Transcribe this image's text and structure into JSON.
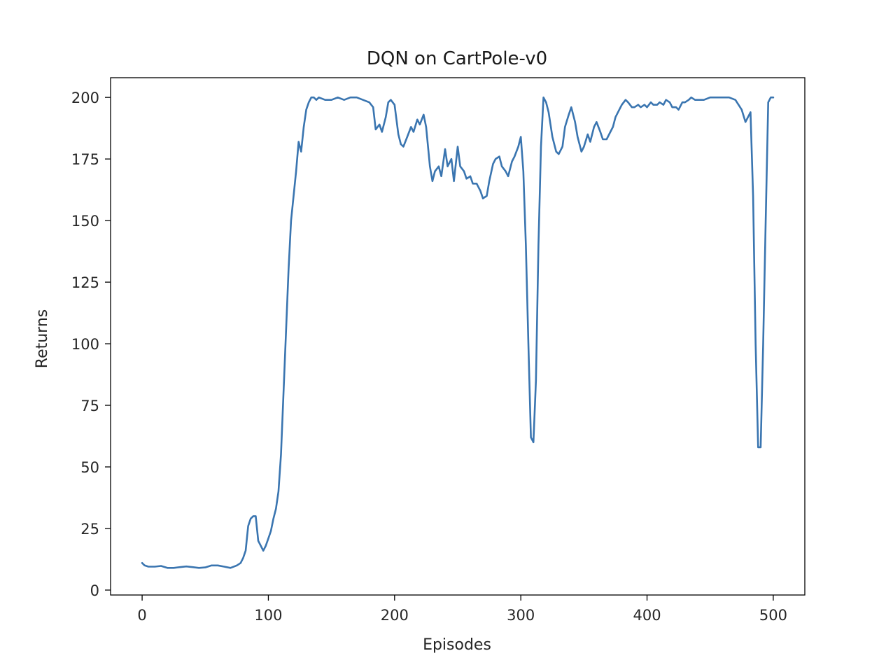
{
  "chart_data": {
    "type": "line",
    "title": "DQN on CartPole-v0",
    "xlabel": "Episodes",
    "ylabel": "Returns",
    "xlim": [
      -25,
      525
    ],
    "ylim": [
      -2,
      208
    ],
    "x_ticks": [
      0,
      100,
      200,
      300,
      400,
      500
    ],
    "y_ticks": [
      0,
      25,
      50,
      75,
      100,
      125,
      150,
      175,
      200
    ],
    "grid": false,
    "line_color": "#3a75b0",
    "series": [
      {
        "x": [
          0,
          2,
          5,
          10,
          15,
          20,
          25,
          30,
          35,
          40,
          45,
          50,
          55,
          60,
          65,
          70,
          75,
          78,
          80,
          82,
          84,
          86,
          88,
          90,
          92,
          94,
          96,
          98,
          100,
          102,
          104,
          106,
          108,
          110,
          112,
          114,
          116,
          118,
          120,
          122,
          124,
          126,
          128,
          130,
          132,
          134,
          136,
          138,
          140,
          145,
          150,
          155,
          160,
          165,
          170,
          175,
          180,
          183,
          185,
          188,
          190,
          193,
          195,
          197,
          200,
          203,
          205,
          207,
          210,
          213,
          215,
          218,
          220,
          223,
          225,
          228,
          230,
          232,
          235,
          237,
          240,
          242,
          245,
          247,
          250,
          252,
          255,
          257,
          260,
          262,
          265,
          268,
          270,
          273,
          275,
          278,
          280,
          283,
          285,
          288,
          290,
          293,
          295,
          298,
          300,
          302,
          304,
          306,
          308,
          310,
          312,
          314,
          316,
          318,
          320,
          322,
          325,
          328,
          330,
          333,
          335,
          338,
          340,
          343,
          345,
          348,
          350,
          353,
          355,
          358,
          360,
          363,
          365,
          368,
          370,
          373,
          375,
          378,
          380,
          383,
          385,
          388,
          390,
          393,
          395,
          398,
          400,
          403,
          405,
          408,
          410,
          413,
          415,
          418,
          420,
          423,
          425,
          428,
          430,
          433,
          435,
          438,
          440,
          445,
          450,
          455,
          460,
          465,
          470,
          475,
          478,
          480,
          482,
          484,
          486,
          488,
          490,
          492,
          494,
          496,
          498,
          500
        ],
        "y": [
          11,
          10,
          9.5,
          9.5,
          9.8,
          9,
          9,
          9.3,
          9.6,
          9.3,
          9,
          9.2,
          10,
          10,
          9.5,
          9,
          10,
          11,
          13,
          16,
          26,
          29,
          30,
          30,
          20,
          18,
          16,
          18,
          21,
          24,
          29,
          33,
          40,
          55,
          80,
          105,
          130,
          150,
          160,
          170,
          182,
          178,
          188,
          195,
          198,
          200,
          200,
          199,
          200,
          199,
          199,
          200,
          199,
          200,
          200,
          199,
          198,
          196,
          187,
          189,
          186,
          192,
          198,
          199,
          197,
          185,
          181,
          180,
          184,
          188,
          186,
          191,
          189,
          193,
          188,
          172,
          166,
          170,
          172,
          168,
          179,
          172,
          175,
          166,
          180,
          172,
          170,
          167,
          168,
          165,
          165,
          162,
          159,
          160,
          166,
          173,
          175,
          176,
          172,
          170,
          168,
          174,
          176,
          180,
          184,
          170,
          140,
          100,
          62,
          60,
          85,
          140,
          180,
          200,
          198,
          194,
          184,
          178,
          177,
          180,
          188,
          193,
          196,
          190,
          184,
          178,
          180,
          185,
          182,
          188,
          190,
          186,
          183,
          183,
          185,
          188,
          192,
          195,
          197,
          199,
          198,
          196,
          196,
          197,
          196,
          197,
          196,
          198,
          197,
          197,
          198,
          197,
          199,
          198,
          196,
          196,
          195,
          198,
          198,
          199,
          200,
          199,
          199,
          199,
          200,
          200,
          200,
          200,
          199,
          195,
          190,
          192,
          194,
          160,
          100,
          58,
          58,
          100,
          150,
          198,
          200,
          200
        ]
      }
    ]
  }
}
